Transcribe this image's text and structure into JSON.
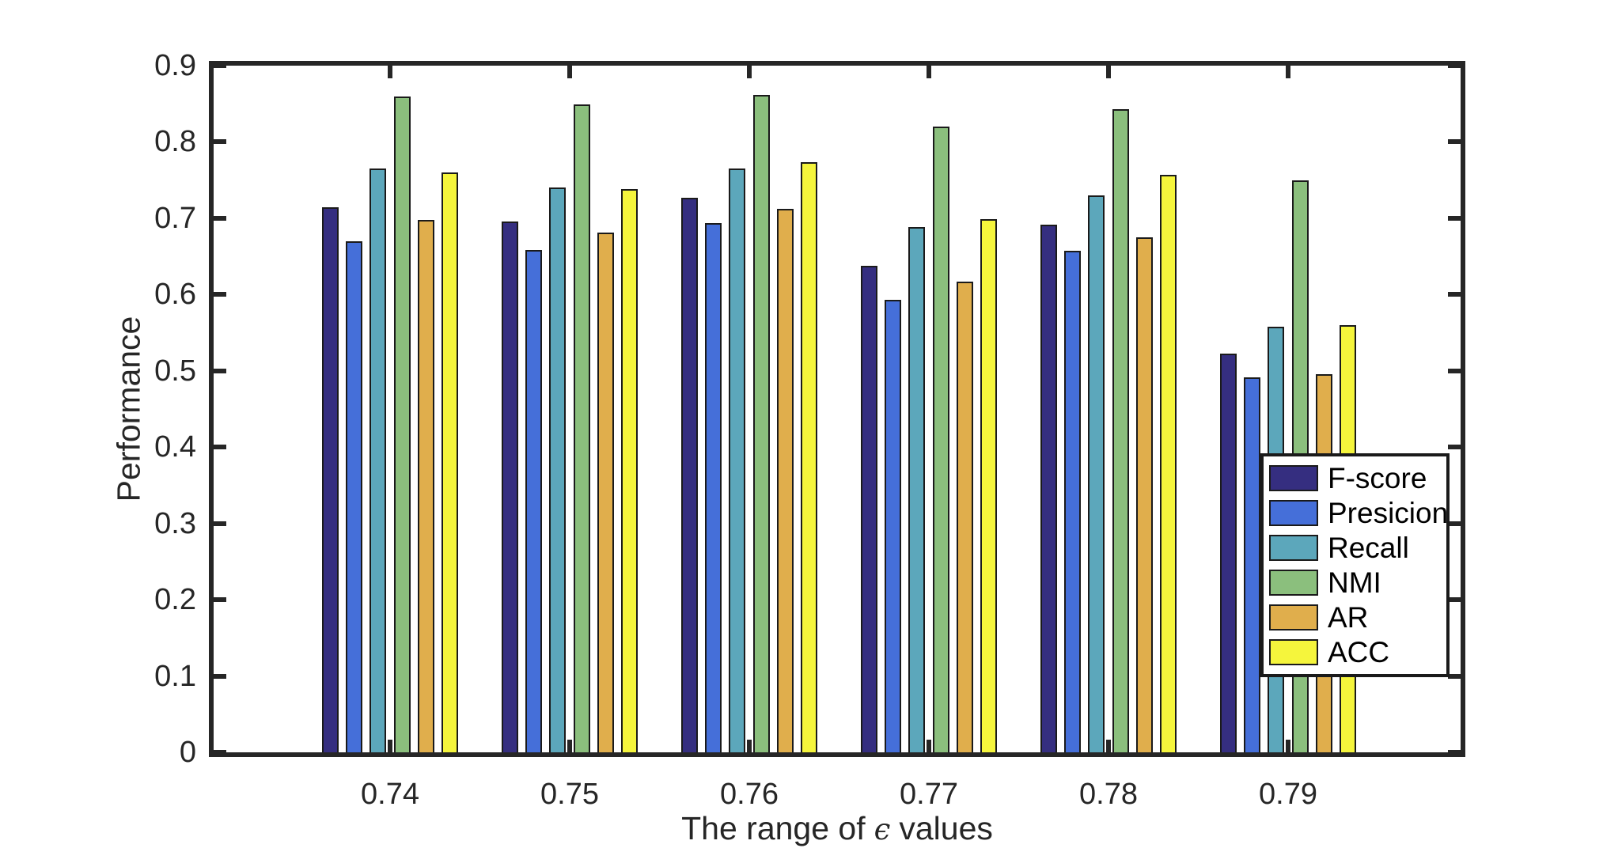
{
  "figure": {
    "background": "#ffffff",
    "axis_color": "#262626",
    "bar_edge_color": "#1a1a1a",
    "legend_border_color": "#1a1a1a"
  },
  "labels": {
    "y_axis": "Performance",
    "x_axis_prefix": "The range of",
    "x_axis_epsilon": "ϵ",
    "x_axis_suffix": "values"
  },
  "chart_data": {
    "type": "bar",
    "title": "",
    "xlabel": "The range of ϵ values",
    "ylabel": "Performance",
    "categories": [
      "0.74",
      "0.75",
      "0.76",
      "0.77",
      "0.78",
      "0.79"
    ],
    "y_ticks": [
      "0",
      "0.1",
      "0.2",
      "0.3",
      "0.4",
      "0.5",
      "0.6",
      "0.7",
      "0.8",
      "0.9"
    ],
    "ylim": [
      0,
      0.9
    ],
    "grid": false,
    "legend_position": "inside-right",
    "legend_labels": [
      "F-score",
      "Presicion",
      "Recall",
      "NMI",
      "AR",
      "ACC"
    ],
    "series": [
      {
        "name": "F-score",
        "color": "#352e80",
        "values": [
          0.714,
          0.696,
          0.727,
          0.638,
          0.692,
          0.523
        ]
      },
      {
        "name": "Presicion",
        "color": "#456fd9",
        "values": [
          0.67,
          0.658,
          0.694,
          0.593,
          0.657,
          0.492
        ]
      },
      {
        "name": "Recall",
        "color": "#5ca7bb",
        "values": [
          0.765,
          0.74,
          0.765,
          0.689,
          0.73,
          0.558
        ]
      },
      {
        "name": "NMI",
        "color": "#8bbf7d",
        "values": [
          0.86,
          0.849,
          0.862,
          0.82,
          0.843,
          0.75
        ]
      },
      {
        "name": "AR",
        "color": "#e0ae4c",
        "values": [
          0.698,
          0.681,
          0.712,
          0.617,
          0.675,
          0.496
        ]
      },
      {
        "name": "ACC",
        "color": "#f5f53c",
        "values": [
          0.76,
          0.738,
          0.774,
          0.699,
          0.757,
          0.56
        ]
      }
    ]
  }
}
